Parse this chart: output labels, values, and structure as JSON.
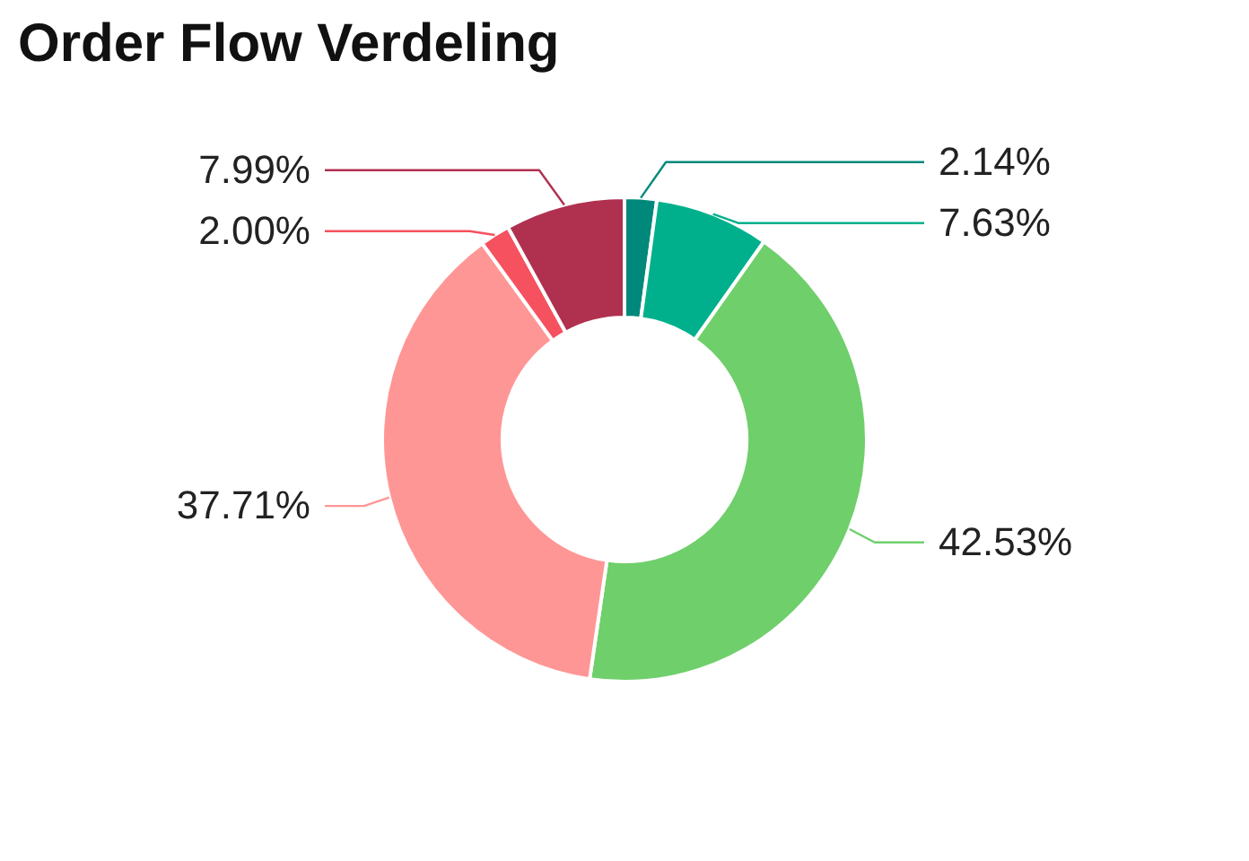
{
  "chart_data": {
    "type": "donut",
    "title": "Order Flow Verdeling",
    "categories": [
      null,
      null,
      null,
      null,
      null,
      null
    ],
    "values": [
      2.14,
      7.63,
      42.53,
      37.71,
      2.0,
      7.99
    ],
    "colors": [
      "#00897b",
      "#00b08c",
      "#6fcf6b",
      "#ff9696",
      "#f5515f",
      "#b03050"
    ],
    "value_labels": [
      "2.14%",
      "7.63%",
      "42.53%",
      "37.71%",
      "2.00%",
      "7.99%"
    ],
    "legend": false
  }
}
